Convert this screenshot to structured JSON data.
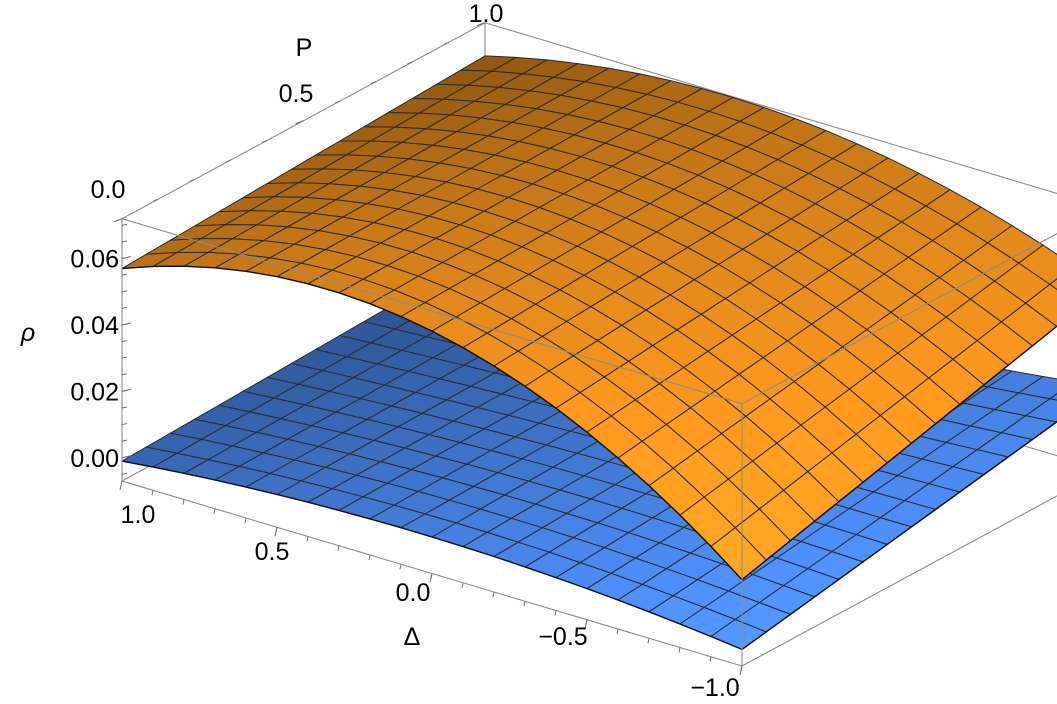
{
  "chart_data": {
    "type": "surface3d",
    "x_axis": {
      "label": "Δ",
      "range": [
        -1.0,
        1.0
      ],
      "ticks": [
        1.0,
        0.5,
        0.0,
        -0.5,
        -1.0
      ],
      "tick_labels": [
        "1.0",
        "0.5",
        "0.0",
        "−0.5",
        "−1.0"
      ]
    },
    "y_axis": {
      "label": "P",
      "range": [
        0.0,
        1.0
      ],
      "ticks": [
        0.0,
        0.5,
        1.0
      ],
      "tick_labels": [
        "0.0",
        "0.5",
        "1.0"
      ]
    },
    "z_axis": {
      "label": "ρ",
      "range": [
        -0.007,
        0.072
      ],
      "ticks": [
        0.0,
        0.02,
        0.04,
        0.06
      ],
      "tick_labels": [
        "0.00",
        "0.02",
        "0.04",
        "0.06"
      ]
    },
    "mesh": {
      "delta_divisions": 20,
      "p_divisions": 15
    },
    "series": [
      {
        "color": "#ff9a1f",
        "shape": "quadratic-in-delta",
        "corner_values": {
          "delta_1_p_0": 0.057,
          "delta_1_p_1": 0.062,
          "delta_0_p_0": 0.066,
          "delta_0_p_1": 0.071,
          "delta_minus1_p_0": 0.019,
          "delta_minus1_p_1": 0.048
        }
      },
      {
        "color": "#4d8cf5",
        "shape": "quadratic-in-delta",
        "corner_values": {
          "delta_1_p_0": -0.001,
          "delta_1_p_1": 0.003,
          "delta_0_p_0": 0.004,
          "delta_0_p_1": 0.008,
          "delta_minus1_p_0": -0.002,
          "delta_minus1_p_1": 0.018
        }
      }
    ],
    "grid": false,
    "box": true
  }
}
